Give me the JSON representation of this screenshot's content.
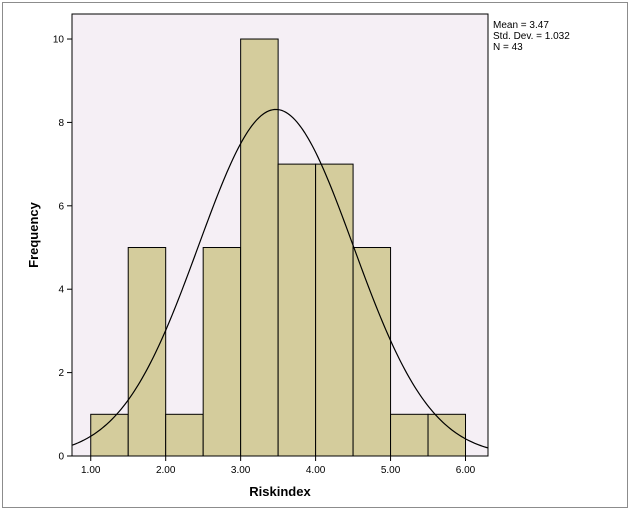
{
  "chart_data": {
    "type": "bar",
    "subtype": "histogram",
    "xlabel": "Riskindex",
    "ylabel": "Frequency",
    "xlim": [
      0.75,
      6.3
    ],
    "ylim": [
      0,
      10.6
    ],
    "x_ticks": [
      "1.00",
      "2.00",
      "3.00",
      "4.00",
      "5.00",
      "6.00"
    ],
    "x_tick_values": [
      1,
      2,
      3,
      4,
      5,
      6
    ],
    "y_ticks": [
      "0",
      "2",
      "4",
      "6",
      "8",
      "10"
    ],
    "y_tick_values": [
      0,
      2,
      4,
      6,
      8,
      10
    ],
    "bin_width": 0.5,
    "bins": [
      {
        "from": 1.0,
        "to": 1.5,
        "value": 1
      },
      {
        "from": 1.5,
        "to": 2.0,
        "value": 5
      },
      {
        "from": 2.0,
        "to": 2.5,
        "value": 1
      },
      {
        "from": 2.5,
        "to": 3.0,
        "value": 5
      },
      {
        "from": 3.0,
        "to": 3.5,
        "value": 10
      },
      {
        "from": 3.5,
        "to": 4.0,
        "value": 7
      },
      {
        "from": 4.0,
        "to": 4.5,
        "value": 7
      },
      {
        "from": 4.5,
        "to": 5.0,
        "value": 5
      },
      {
        "from": 5.0,
        "to": 5.5,
        "value": 1
      },
      {
        "from": 5.5,
        "to": 6.0,
        "value": 1
      }
    ],
    "normal_curve": {
      "mean": 3.47,
      "sd": 1.032,
      "n": 43
    },
    "stats": [
      "Mean = 3.47",
      "Std. Dev. = 1.032",
      "N = 43"
    ],
    "grid": false,
    "legend": "none",
    "colors": {
      "bar_fill": "#d4cc9c",
      "bar_stroke": "#000000",
      "plot_background": "#f5eff5",
      "curve": "#000000"
    }
  }
}
